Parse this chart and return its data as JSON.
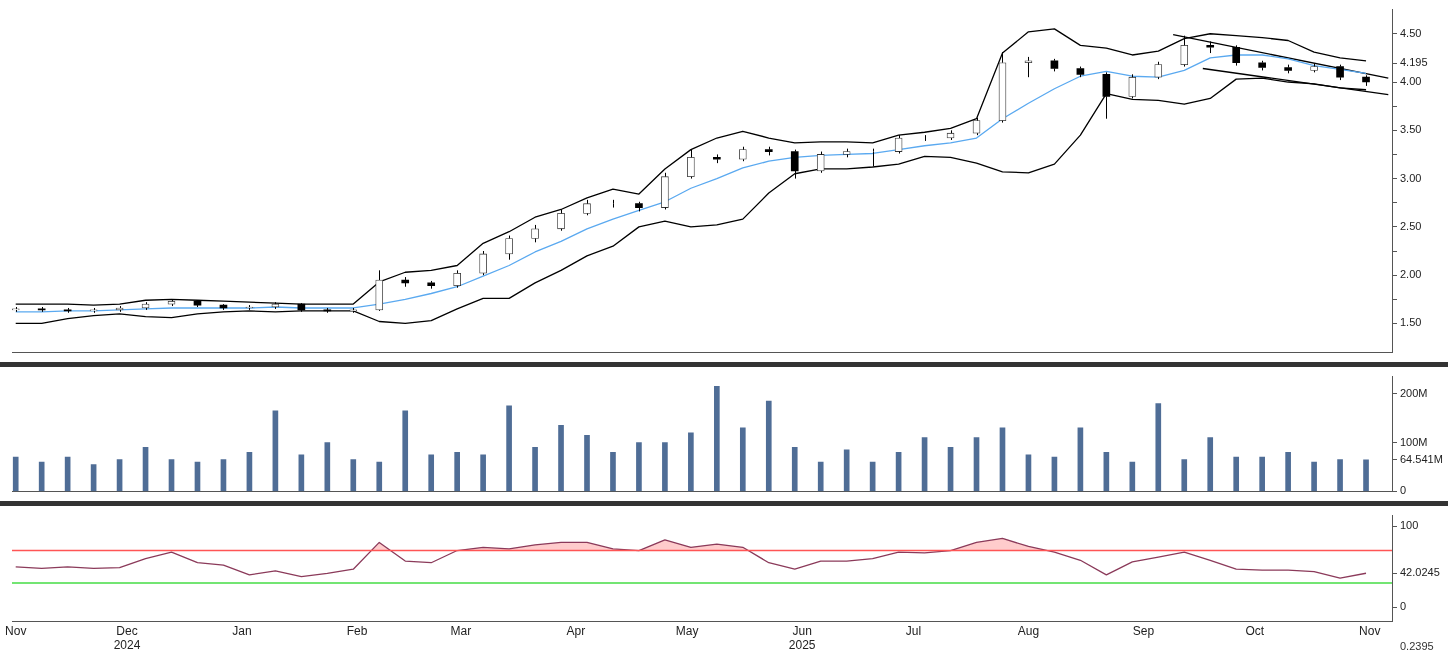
{
  "chart_data": [
    {
      "type": "candlestick",
      "x": [
        "2024-11-01",
        "2024-11-08",
        "2024-11-15",
        "2024-11-22",
        "2024-11-29",
        "2024-12-06",
        "2024-12-13",
        "2024-12-20",
        "2024-12-27",
        "2025-01-03",
        "2025-01-10",
        "2025-01-17",
        "2025-01-24",
        "2025-01-31",
        "2025-02-07",
        "2025-02-14",
        "2025-02-21",
        "2025-02-28",
        "2025-03-07",
        "2025-03-14",
        "2025-03-21",
        "2025-03-28",
        "2025-04-04",
        "2025-04-11",
        "2025-04-18",
        "2025-04-25",
        "2025-05-02",
        "2025-05-09",
        "2025-05-16",
        "2025-05-23",
        "2025-05-30",
        "2025-06-06",
        "2025-06-13",
        "2025-06-20",
        "2025-06-27",
        "2025-07-04",
        "2025-07-11",
        "2025-07-18",
        "2025-07-25",
        "2025-08-01",
        "2025-08-08",
        "2025-08-15",
        "2025-08-22",
        "2025-08-29",
        "2025-09-05",
        "2025-09-12",
        "2025-09-19",
        "2025-09-26",
        "2025-10-03",
        "2025-10-10",
        "2025-10-17",
        "2025-10-24",
        "2025-10-31"
      ],
      "ohlc": [
        [
          1.64,
          1.67,
          1.62,
          1.65
        ],
        [
          1.65,
          1.67,
          1.62,
          1.64
        ],
        [
          1.64,
          1.66,
          1.61,
          1.63
        ],
        [
          1.63,
          1.66,
          1.61,
          1.64
        ],
        [
          1.64,
          1.68,
          1.62,
          1.66
        ],
        [
          1.66,
          1.72,
          1.64,
          1.7
        ],
        [
          1.7,
          1.75,
          1.68,
          1.73
        ],
        [
          1.73,
          1.74,
          1.67,
          1.69
        ],
        [
          1.69,
          1.7,
          1.64,
          1.66
        ],
        [
          1.66,
          1.69,
          1.64,
          1.67
        ],
        [
          1.67,
          1.72,
          1.65,
          1.7
        ],
        [
          1.7,
          1.71,
          1.62,
          1.64
        ],
        [
          1.64,
          1.66,
          1.61,
          1.63
        ],
        [
          1.63,
          1.66,
          1.61,
          1.64
        ],
        [
          1.64,
          2.05,
          1.63,
          1.95
        ],
        [
          1.95,
          1.98,
          1.88,
          1.92
        ],
        [
          1.92,
          1.94,
          1.86,
          1.89
        ],
        [
          1.89,
          2.05,
          1.87,
          2.02
        ],
        [
          2.02,
          2.25,
          2.0,
          2.22
        ],
        [
          2.22,
          2.41,
          2.16,
          2.38
        ],
        [
          2.38,
          2.52,
          2.34,
          2.48
        ],
        [
          2.48,
          2.68,
          2.46,
          2.64
        ],
        [
          2.64,
          2.78,
          2.62,
          2.74
        ],
        [
          2.74,
          2.78,
          2.7,
          2.74
        ],
        [
          2.74,
          2.76,
          2.66,
          2.7
        ],
        [
          2.7,
          3.06,
          2.68,
          3.02
        ],
        [
          3.02,
          3.3,
          3.0,
          3.22
        ],
        [
          3.22,
          3.25,
          3.16,
          3.2
        ],
        [
          3.2,
          3.33,
          3.18,
          3.3
        ],
        [
          3.3,
          3.33,
          3.24,
          3.28
        ],
        [
          3.28,
          3.3,
          3.0,
          3.08
        ],
        [
          3.08,
          3.28,
          3.06,
          3.25
        ],
        [
          3.25,
          3.31,
          3.22,
          3.28
        ],
        [
          3.28,
          3.31,
          3.13,
          3.28
        ],
        [
          3.28,
          3.45,
          3.26,
          3.42
        ],
        [
          3.42,
          3.45,
          3.39,
          3.42
        ],
        [
          3.42,
          3.5,
          3.4,
          3.47
        ],
        [
          3.47,
          3.63,
          3.45,
          3.6
        ],
        [
          3.6,
          4.31,
          3.58,
          4.2
        ],
        [
          4.2,
          4.26,
          4.05,
          4.22
        ],
        [
          4.22,
          4.24,
          4.11,
          4.14
        ],
        [
          4.14,
          4.16,
          4.05,
          4.08
        ],
        [
          4.08,
          4.1,
          3.62,
          3.85
        ],
        [
          3.85,
          4.08,
          3.83,
          4.05
        ],
        [
          4.05,
          4.21,
          4.03,
          4.18
        ],
        [
          4.18,
          4.48,
          4.16,
          4.38
        ],
        [
          4.38,
          4.42,
          4.3,
          4.36
        ],
        [
          4.36,
          4.38,
          4.17,
          4.2
        ],
        [
          4.2,
          4.22,
          4.12,
          4.15
        ],
        [
          4.15,
          4.18,
          4.09,
          4.12
        ],
        [
          4.12,
          4.19,
          4.1,
          4.16
        ],
        [
          4.16,
          4.18,
          4.02,
          4.05
        ],
        [
          4.05,
          4.07,
          3.96,
          4.0
        ]
      ],
      "series": [
        {
          "type": "line",
          "color": "#000000",
          "values": [
            1.7,
            1.7,
            1.7,
            1.69,
            1.7,
            1.74,
            1.75,
            1.74,
            1.73,
            1.72,
            1.71,
            1.7,
            1.7,
            1.7,
            1.93,
            2.03,
            2.05,
            2.1,
            2.33,
            2.45,
            2.6,
            2.68,
            2.8,
            2.89,
            2.84,
            3.1,
            3.3,
            3.42,
            3.49,
            3.42,
            3.37,
            3.38,
            3.38,
            3.37,
            3.45,
            3.48,
            3.52,
            3.62,
            4.3,
            4.52,
            4.55,
            4.38,
            4.35,
            4.28,
            4.32,
            4.45,
            4.5,
            4.48,
            4.46,
            4.43,
            4.31,
            4.25,
            4.22
          ]
        },
        {
          "type": "line",
          "color": "#5aa9f0",
          "values": [
            1.62,
            1.62,
            1.63,
            1.63,
            1.64,
            1.65,
            1.66,
            1.66,
            1.66,
            1.66,
            1.67,
            1.66,
            1.66,
            1.66,
            1.7,
            1.75,
            1.81,
            1.88,
            1.99,
            2.1,
            2.24,
            2.35,
            2.48,
            2.58,
            2.67,
            2.76,
            2.9,
            3.0,
            3.11,
            3.18,
            3.22,
            3.24,
            3.25,
            3.26,
            3.3,
            3.34,
            3.37,
            3.42,
            3.62,
            3.78,
            3.93,
            4.06,
            4.11,
            4.06,
            4.05,
            4.12,
            4.25,
            4.28,
            4.28,
            4.24,
            4.17,
            4.13,
            4.09
          ]
        },
        {
          "type": "line",
          "color": "#000000",
          "values": [
            1.5,
            1.5,
            1.55,
            1.58,
            1.6,
            1.57,
            1.56,
            1.6,
            1.62,
            1.63,
            1.62,
            1.63,
            1.63,
            1.63,
            1.52,
            1.5,
            1.53,
            1.65,
            1.76,
            1.76,
            1.92,
            2.05,
            2.2,
            2.3,
            2.5,
            2.56,
            2.5,
            2.52,
            2.58,
            2.85,
            3.05,
            3.1,
            3.1,
            3.12,
            3.15,
            3.23,
            3.22,
            3.16,
            3.07,
            3.06,
            3.15,
            3.45,
            3.88,
            3.82,
            3.81,
            3.77,
            3.83,
            4.03,
            4.04,
            4.0,
            3.98,
            3.94,
            3.92
          ]
        },
        {
          "type": "line",
          "color": "#000000",
          "x": [
            "2025-09-09",
            "2025-11-06"
          ],
          "values": [
            4.49,
            4.04
          ]
        },
        {
          "type": "line",
          "color": "#000000",
          "x": [
            "2025-09-17",
            "2025-11-06"
          ],
          "values": [
            4.14,
            3.87
          ]
        }
      ],
      "xlim": [
        "2024-10-31",
        "2025-11-07"
      ],
      "ylim": [
        1.2,
        4.75
      ],
      "yticks": [
        {
          "value": 1.5,
          "label": "1.50"
        },
        {
          "value": 1.75,
          "label": null
        },
        {
          "value": 2,
          "label": "2.00"
        },
        {
          "value": 2.25,
          "label": null
        },
        {
          "value": 2.5,
          "label": "2.50"
        },
        {
          "value": 2.75,
          "label": null
        },
        {
          "value": 3,
          "label": "3.00"
        },
        {
          "value": 3.25,
          "label": null
        },
        {
          "value": 3.5,
          "label": "3.50"
        },
        {
          "value": 3.75,
          "label": null
        },
        {
          "value": 4,
          "label": "4.00"
        },
        {
          "value": 4.195,
          "label": "4.195"
        },
        {
          "value": 4.5,
          "label": "4.50"
        }
      ],
      "tick_labels": "y"
    },
    {
      "type": "bar",
      "x": [
        "2024-11-01",
        "2024-11-08",
        "2024-11-15",
        "2024-11-22",
        "2024-11-29",
        "2024-12-06",
        "2024-12-13",
        "2024-12-20",
        "2024-12-27",
        "2025-01-03",
        "2025-01-10",
        "2025-01-17",
        "2025-01-24",
        "2025-01-31",
        "2025-02-07",
        "2025-02-14",
        "2025-02-21",
        "2025-02-28",
        "2025-03-07",
        "2025-03-14",
        "2025-03-21",
        "2025-03-28",
        "2025-04-04",
        "2025-04-11",
        "2025-04-18",
        "2025-04-25",
        "2025-05-02",
        "2025-05-09",
        "2025-05-16",
        "2025-05-23",
        "2025-05-30",
        "2025-06-06",
        "2025-06-13",
        "2025-06-20",
        "2025-06-27",
        "2025-07-04",
        "2025-07-11",
        "2025-07-18",
        "2025-07-25",
        "2025-08-01",
        "2025-08-08",
        "2025-08-15",
        "2025-08-22",
        "2025-08-29",
        "2025-09-05",
        "2025-09-12",
        "2025-09-19",
        "2025-09-26",
        "2025-10-03",
        "2025-10-10",
        "2025-10-17",
        "2025-10-24",
        "2025-10-31"
      ],
      "values": [
        70,
        60,
        70,
        55,
        65,
        90,
        65,
        60,
        65,
        80,
        165,
        75,
        100,
        65,
        60,
        165,
        75,
        80,
        75,
        175,
        90,
        135,
        115,
        80,
        100,
        100,
        120,
        215,
        130,
        185,
        90,
        60,
        85,
        60,
        80,
        110,
        90,
        110,
        130,
        75,
        70,
        130,
        80,
        60,
        180,
        65,
        110,
        70,
        70,
        80,
        60,
        65,
        64.541
      ],
      "color": "#4f6d96",
      "xlim": [
        "2024-10-31",
        "2025-11-07"
      ],
      "ylim": [
        0,
        235
      ],
      "yticks": [
        {
          "value": 0,
          "label": "0"
        },
        {
          "value": 64.541,
          "label": "64.541M"
        },
        {
          "value": 100,
          "label": "100M"
        },
        {
          "value": 200,
          "label": "200M"
        }
      ],
      "tick_labels": "y"
    },
    {
      "type": "line",
      "x": [
        "2024-11-01",
        "2024-11-08",
        "2024-11-15",
        "2024-11-22",
        "2024-11-29",
        "2024-12-06",
        "2024-12-13",
        "2024-12-20",
        "2024-12-27",
        "2025-01-03",
        "2025-01-10",
        "2025-01-17",
        "2025-01-24",
        "2025-01-31",
        "2025-02-07",
        "2025-02-14",
        "2025-02-21",
        "2025-02-28",
        "2025-03-07",
        "2025-03-14",
        "2025-03-21",
        "2025-03-28",
        "2025-04-04",
        "2025-04-11",
        "2025-04-18",
        "2025-04-25",
        "2025-05-02",
        "2025-05-09",
        "2025-05-16",
        "2025-05-23",
        "2025-05-30",
        "2025-06-06",
        "2025-06-13",
        "2025-06-20",
        "2025-06-27",
        "2025-07-04",
        "2025-07-11",
        "2025-07-18",
        "2025-07-25",
        "2025-08-01",
        "2025-08-08",
        "2025-08-15",
        "2025-08-22",
        "2025-08-29",
        "2025-09-05",
        "2025-09-12",
        "2025-09-19",
        "2025-09-26",
        "2025-10-03",
        "2025-10-10",
        "2025-10-17",
        "2025-10-24",
        "2025-10-31"
      ],
      "values": [
        50,
        48,
        50,
        48,
        49,
        60,
        68,
        55,
        52,
        40,
        45,
        38,
        42,
        47,
        80,
        57,
        55,
        70,
        74,
        72,
        77,
        80,
        80,
        72,
        70,
        83,
        74,
        78,
        74,
        55,
        47,
        57,
        57,
        60,
        68,
        67,
        70,
        80,
        85,
        75,
        68,
        58,
        40,
        56,
        62,
        68,
        58,
        47,
        46,
        46,
        44,
        36,
        42.0245
      ],
      "color": "#8b3a5a",
      "xlim": [
        "2024-10-31",
        "2025-11-07"
      ],
      "ylim": [
        -17,
        113
      ],
      "xticks": [
        {
          "value": "2024-11-01",
          "label": "Nov"
        },
        {
          "value": "2024-12-01",
          "label": "Dec\n2024"
        },
        {
          "value": "2025-01-01",
          "label": "Jan"
        },
        {
          "value": "2025-02-01",
          "label": "Feb"
        },
        {
          "value": "2025-03-01",
          "label": "Mar"
        },
        {
          "value": "2025-04-01",
          "label": "Apr"
        },
        {
          "value": "2025-05-01",
          "label": "May"
        },
        {
          "value": "2025-06-01",
          "label": "Jun\n2025"
        },
        {
          "value": "2025-07-01",
          "label": "Jul"
        },
        {
          "value": "2025-08-01",
          "label": "Aug"
        },
        {
          "value": "2025-09-01",
          "label": "Sep"
        },
        {
          "value": "2025-10-01",
          "label": "Oct"
        },
        {
          "value": "2025-11-01",
          "label": "Nov"
        }
      ],
      "yticks": [
        0,
        42.0245,
        100
      ],
      "ref_lines": [
        {
          "axis": "y",
          "value": 70,
          "color": "#ff5555"
        },
        {
          "axis": "y",
          "value": 30,
          "color": "#44dd44"
        }
      ],
      "annotations": [
        "0.2395"
      ]
    }
  ]
}
